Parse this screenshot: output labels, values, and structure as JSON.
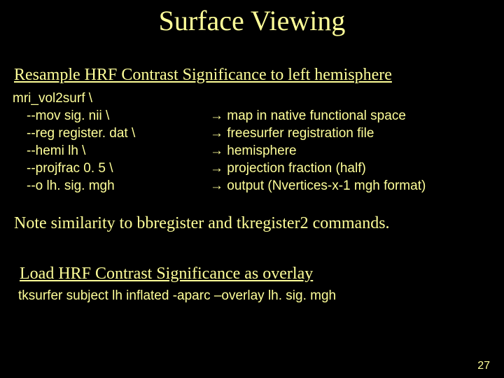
{
  "colors": {
    "background": "#000000",
    "text": "#ffff99"
  },
  "fonts": {
    "title_family": "Times New Roman",
    "body_serif_family": "Times New Roman",
    "code_family": "Arial",
    "title_size_pt": 40,
    "subheading_size_pt": 24,
    "code_size_pt": 19,
    "page_num_size_pt": 16
  },
  "title": "Surface Viewing",
  "subheading1": "Resample HRF Contrast Significance to left hemisphere",
  "code": {
    "line0": "mri_vol2surf \\",
    "line1": "--mov sig. nii \\",
    "line2": "--reg register. dat \\",
    "line3": "--hemi lh \\",
    "line4": "--projfrac 0. 5 \\",
    "line5": "--o lh. sig. mgh"
  },
  "arrow_glyph": "→",
  "annotations": {
    "a1": "map in native functional space",
    "a2": "freesurfer registration file",
    "a3": "hemisphere",
    "a4": "projection fraction (half)",
    "a5": "output (Nvertices-x-1 mgh format)"
  },
  "note": "Note similarity to bbregister and tkregister2 commands.",
  "subheading2": "Load HRF Contrast Significance as overlay",
  "command2": "tksurfer subject lh inflated -aparc   –overlay lh. sig. mgh",
  "page_number": "27"
}
